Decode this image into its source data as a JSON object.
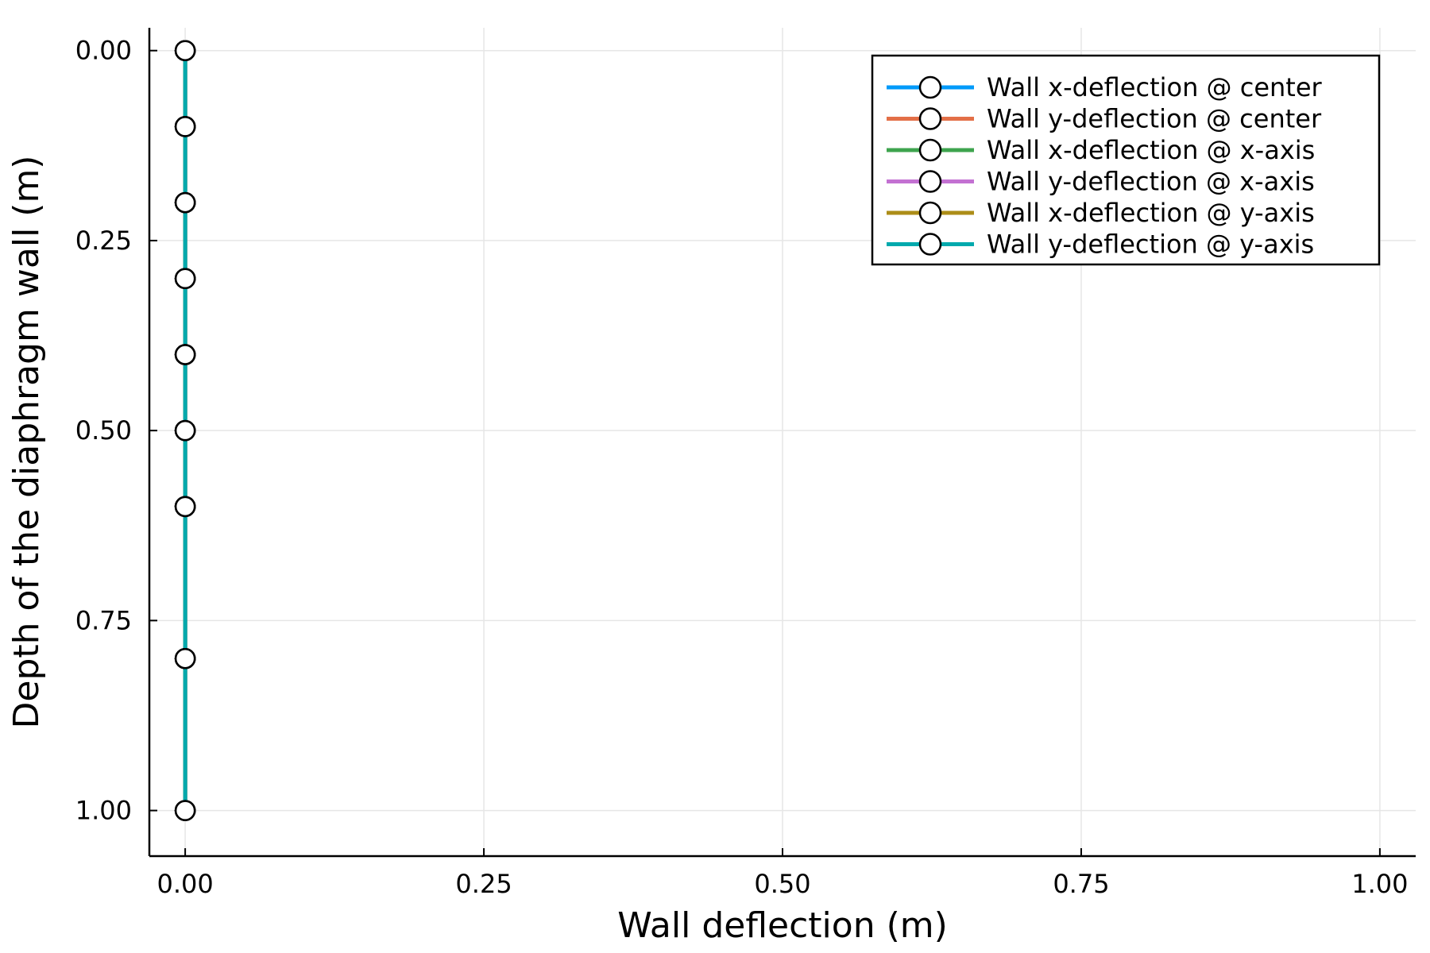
{
  "chart_data": {
    "type": "line",
    "title": "",
    "xlabel": "Wall deflection (m)",
    "ylabel": "Depth of the diaphragm wall (m)",
    "xlim": [
      -0.03,
      1.03
    ],
    "ylim": [
      1.06,
      -0.03
    ],
    "y_inverted": true,
    "xticks": [
      0.0,
      0.25,
      0.5,
      0.75,
      1.0
    ],
    "xtick_labels": [
      "0.00",
      "0.25",
      "0.50",
      "0.75",
      "1.00"
    ],
    "yticks": [
      0.0,
      0.25,
      0.5,
      0.75,
      1.0
    ],
    "ytick_labels": [
      "0.00",
      "0.25",
      "0.50",
      "0.75",
      "1.00"
    ],
    "grid": true,
    "legend_position": "top-right",
    "marker": "circle",
    "series": [
      {
        "name": "Wall x-deflection @ center",
        "color": "#009AFA",
        "x": [
          0,
          0,
          0,
          0,
          0,
          0,
          0,
          0,
          0
        ],
        "y": [
          0.0,
          0.1,
          0.2,
          0.3,
          0.4,
          0.5,
          0.6,
          0.8,
          1.0
        ]
      },
      {
        "name": "Wall y-deflection @ center",
        "color": "#E36F47",
        "x": [
          0,
          0,
          0,
          0,
          0,
          0,
          0,
          0,
          0
        ],
        "y": [
          0.0,
          0.1,
          0.2,
          0.3,
          0.4,
          0.5,
          0.6,
          0.8,
          1.0
        ]
      },
      {
        "name": "Wall x-deflection @ x-axis",
        "color": "#3EA44E",
        "x": [
          0,
          0,
          0,
          0,
          0,
          0,
          0,
          0,
          0
        ],
        "y": [
          0.0,
          0.1,
          0.2,
          0.3,
          0.4,
          0.5,
          0.6,
          0.8,
          1.0
        ]
      },
      {
        "name": "Wall y-deflection @ x-axis",
        "color": "#C371D2",
        "x": [
          0,
          0,
          0,
          0,
          0,
          0,
          0,
          0,
          0
        ],
        "y": [
          0.0,
          0.1,
          0.2,
          0.3,
          0.4,
          0.5,
          0.6,
          0.8,
          1.0
        ]
      },
      {
        "name": "Wall x-deflection @ y-axis",
        "color": "#AC8D18",
        "x": [
          0,
          0,
          0,
          0,
          0,
          0,
          0,
          0,
          0
        ],
        "y": [
          0.0,
          0.1,
          0.2,
          0.3,
          0.4,
          0.5,
          0.6,
          0.8,
          1.0
        ]
      },
      {
        "name": "Wall y-deflection @ y-axis",
        "color": "#00A9AD",
        "x": [
          0,
          0,
          0,
          0,
          0,
          0,
          0,
          0,
          0
        ],
        "y": [
          0.0,
          0.1,
          0.2,
          0.3,
          0.4,
          0.5,
          0.6,
          0.8,
          1.0
        ]
      }
    ]
  }
}
